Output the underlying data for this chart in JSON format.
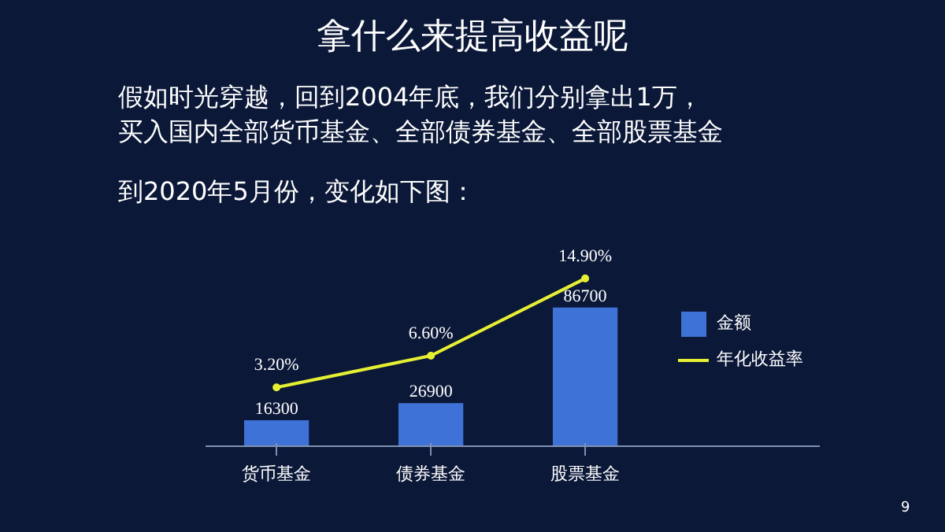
{
  "chart_data": {
    "type": "bar",
    "title": "拿什么来提高收益呢",
    "annotations": [
      "假如时光穿越，回到2004年底，我们分别拿出1万，",
      "买入国内全部货币基金、全部债券基金、全部股票基金",
      "到2020年5月份，变化如下图：",
      "9"
    ],
    "categories": [
      "货币基金",
      "债券基金",
      "股票基金"
    ],
    "series": [
      {
        "name": "金额",
        "color": "#3f72d6",
        "values": [
          16300,
          26900,
          86700
        ]
      },
      {
        "name": "年化收益率",
        "type": "line",
        "axis": "y2",
        "color": "#e6f032",
        "values": [
          3.2,
          6.6,
          14.9
        ],
        "value_labels": [
          "3.20%",
          "6.60%",
          "14.90%"
        ]
      }
    ],
    "data_labels": true,
    "legend": "right",
    "grid": false,
    "marker": "circle"
  }
}
